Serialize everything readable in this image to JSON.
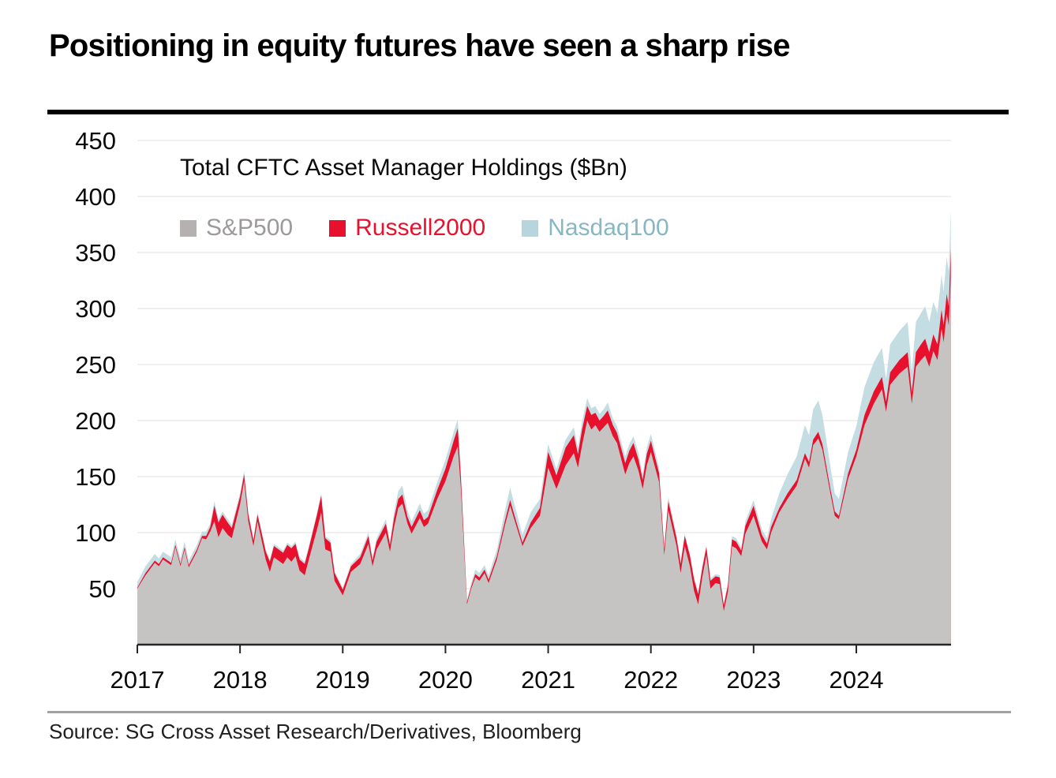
{
  "header": {
    "title": "Positioning in equity futures have seen a sharp rise"
  },
  "chart": {
    "subtitle": "Total CFTC Asset Manager Holdings ($Bn)",
    "legend": [
      {
        "label": "S&P500",
        "marker_color": "#b5b1b1",
        "text_color": "#9d9999"
      },
      {
        "label": "Russell2000",
        "marker_color": "#e8112d",
        "text_color": "#e8112d"
      },
      {
        "label": "Nasdaq100",
        "marker_color": "#b7d5dc",
        "text_color": "#85b7c4"
      }
    ]
  },
  "footer": {
    "source": "Source: SG Cross Asset Research/Derivatives, Bloomberg"
  },
  "colors": {
    "grid": "#e7e7e5",
    "axis": "#262626",
    "tick_label": "#0a0a0a",
    "area_sp500": "#c6c3c3",
    "area_russell2000": "#e8112d",
    "area_nasdaq100": "#c3dde2"
  },
  "chart_data": {
    "type": "area",
    "stacked": true,
    "title": "Total CFTC Asset Manager Holdings ($Bn)",
    "units": "$Bn",
    "grid": "horizontal",
    "legend_position": "top-left-inside",
    "ylim": [
      0,
      450
    ],
    "xlim": [
      2017.0,
      2024.95
    ],
    "yticks": [
      50,
      100,
      150,
      200,
      250,
      300,
      350,
      400,
      450
    ],
    "xticks": [
      2017,
      2018,
      2019,
      2020,
      2021,
      2022,
      2023,
      2024
    ],
    "x": [
      2017.0,
      2017.08,
      2017.17,
      2017.21,
      2017.25,
      2017.33,
      2017.37,
      2017.42,
      2017.46,
      2017.5,
      2017.58,
      2017.63,
      2017.67,
      2017.71,
      2017.75,
      2017.79,
      2017.83,
      2017.88,
      2017.92,
      2018.0,
      2018.04,
      2018.08,
      2018.13,
      2018.17,
      2018.25,
      2018.29,
      2018.33,
      2018.42,
      2018.46,
      2018.5,
      2018.54,
      2018.58,
      2018.63,
      2018.67,
      2018.75,
      2018.79,
      2018.83,
      2018.88,
      2018.92,
      2019.0,
      2019.08,
      2019.17,
      2019.25,
      2019.29,
      2019.33,
      2019.42,
      2019.46,
      2019.5,
      2019.54,
      2019.58,
      2019.63,
      2019.67,
      2019.75,
      2019.79,
      2019.83,
      2019.92,
      2020.0,
      2020.08,
      2020.12,
      2020.15,
      2020.21,
      2020.25,
      2020.29,
      2020.33,
      2020.38,
      2020.42,
      2020.5,
      2020.58,
      2020.63,
      2020.67,
      2020.75,
      2020.83,
      2020.92,
      2021.0,
      2021.08,
      2021.17,
      2021.25,
      2021.29,
      2021.33,
      2021.38,
      2021.42,
      2021.46,
      2021.5,
      2021.54,
      2021.58,
      2021.63,
      2021.67,
      2021.75,
      2021.79,
      2021.83,
      2021.88,
      2021.92,
      2021.96,
      2022.0,
      2022.08,
      2022.13,
      2022.17,
      2022.25,
      2022.29,
      2022.33,
      2022.38,
      2022.42,
      2022.46,
      2022.5,
      2022.54,
      2022.58,
      2022.63,
      2022.67,
      2022.71,
      2022.75,
      2022.79,
      2022.83,
      2022.88,
      2022.92,
      2023.0,
      2023.08,
      2023.13,
      2023.17,
      2023.25,
      2023.33,
      2023.42,
      2023.5,
      2023.54,
      2023.58,
      2023.63,
      2023.67,
      2023.75,
      2023.79,
      2023.83,
      2023.92,
      2024.0,
      2024.08,
      2024.17,
      2024.25,
      2024.29,
      2024.33,
      2024.42,
      2024.5,
      2024.54,
      2024.58,
      2024.63,
      2024.67,
      2024.71,
      2024.75,
      2024.79,
      2024.83,
      2024.85,
      2024.88,
      2024.9,
      2024.92
    ],
    "series": [
      {
        "name": "S&P500",
        "color": "#c6c3c3",
        "values": [
          50,
          62,
          73,
          70,
          76,
          71,
          87,
          70,
          85,
          69,
          83,
          95,
          94,
          101,
          110,
          96,
          104,
          98,
          95,
          125,
          146,
          110,
          88,
          110,
          76,
          65,
          78,
          72,
          78,
          74,
          79,
          66,
          62,
          76,
          103,
          118,
          85,
          83,
          57,
          44,
          65,
          72,
          90,
          70,
          85,
          100,
          83,
          105,
          122,
          126,
          108,
          99,
          113,
          105,
          108,
          130,
          146,
          168,
          177,
          140,
          36,
          50,
          60,
          57,
          64,
          55,
          76,
          107,
          124,
          112,
          88,
          104,
          115,
          158,
          139,
          160,
          171,
          158,
          178,
          200,
          192,
          196,
          190,
          194,
          198,
          186,
          180,
          152,
          162,
          168,
          155,
          139,
          160,
          172,
          145,
          80,
          120,
          88,
          64,
          88,
          70,
          48,
          36,
          60,
          80,
          50,
          55,
          54,
          30,
          47,
          88,
          86,
          79,
          99,
          115,
          92,
          85,
          100,
          118,
          130,
          142,
          166,
          158,
          178,
          184,
          174,
          134,
          115,
          112,
          148,
          168,
          196,
          215,
          228,
          208,
          232,
          242,
          248,
          215,
          248,
          254,
          258,
          248,
          262,
          254,
          282,
          270,
          295,
          285,
          330
        ]
      },
      {
        "name": "Russell2000",
        "color": "#e8112d",
        "values": [
          1,
          2,
          2,
          2,
          2,
          2,
          2,
          2,
          2,
          2,
          2,
          2,
          3,
          4,
          14,
          13,
          12,
          11,
          9,
          7,
          6,
          6,
          5,
          6,
          7,
          9,
          10,
          10,
          11,
          12,
          11,
          10,
          10,
          10,
          13,
          15,
          10,
          8,
          7,
          5,
          5,
          6,
          7,
          5,
          7,
          8,
          6,
          8,
          8,
          8,
          6,
          6,
          7,
          6,
          6,
          8,
          11,
          14,
          16,
          10,
          2,
          2,
          3,
          3,
          3,
          3,
          3,
          4,
          5,
          4,
          3,
          5,
          7,
          14,
          12,
          16,
          16,
          12,
          14,
          13,
          13,
          11,
          10,
          10,
          11,
          10,
          9,
          10,
          11,
          12,
          10,
          8,
          10,
          10,
          8,
          5,
          8,
          7,
          8,
          9,
          9,
          10,
          9,
          8,
          7,
          7,
          6,
          6,
          5,
          6,
          6,
          6,
          5,
          7,
          9,
          6,
          5,
          5,
          4,
          5,
          5,
          5,
          5,
          5,
          6,
          5,
          4,
          4,
          3,
          5,
          6,
          9,
          11,
          11,
          9,
          11,
          12,
          13,
          10,
          13,
          14,
          15,
          13,
          15,
          14,
          17,
          15,
          18,
          17,
          23
        ]
      },
      {
        "name": "Nasdaq100",
        "color": "#c3dde2",
        "values": [
          5,
          6,
          6,
          5,
          5,
          5,
          5,
          5,
          5,
          4,
          4,
          4,
          4,
          3,
          4,
          3,
          3,
          3,
          3,
          3,
          3,
          3,
          2,
          2,
          2,
          2,
          2,
          2,
          2,
          2,
          2,
          2,
          2,
          2,
          2,
          2,
          2,
          2,
          2,
          2,
          2,
          3,
          3,
          3,
          3,
          4,
          3,
          5,
          7,
          8,
          6,
          5,
          6,
          6,
          6,
          7,
          8,
          8,
          8,
          5,
          2,
          3,
          4,
          4,
          4,
          4,
          6,
          9,
          11,
          10,
          7,
          9,
          8,
          7,
          6,
          7,
          7,
          6,
          7,
          7,
          6,
          6,
          6,
          6,
          7,
          6,
          6,
          6,
          6,
          6,
          6,
          5,
          6,
          6,
          5,
          3,
          4,
          3,
          2,
          2,
          2,
          2,
          2,
          2,
          2,
          2,
          2,
          2,
          2,
          2,
          3,
          3,
          3,
          4,
          5,
          5,
          5,
          7,
          13,
          17,
          21,
          25,
          24,
          27,
          28,
          26,
          20,
          16,
          15,
          19,
          21,
          25,
          26,
          26,
          20,
          25,
          26,
          27,
          19,
          27,
          28,
          29,
          27,
          29,
          28,
          31,
          30,
          33,
          31,
          35
        ]
      }
    ]
  }
}
